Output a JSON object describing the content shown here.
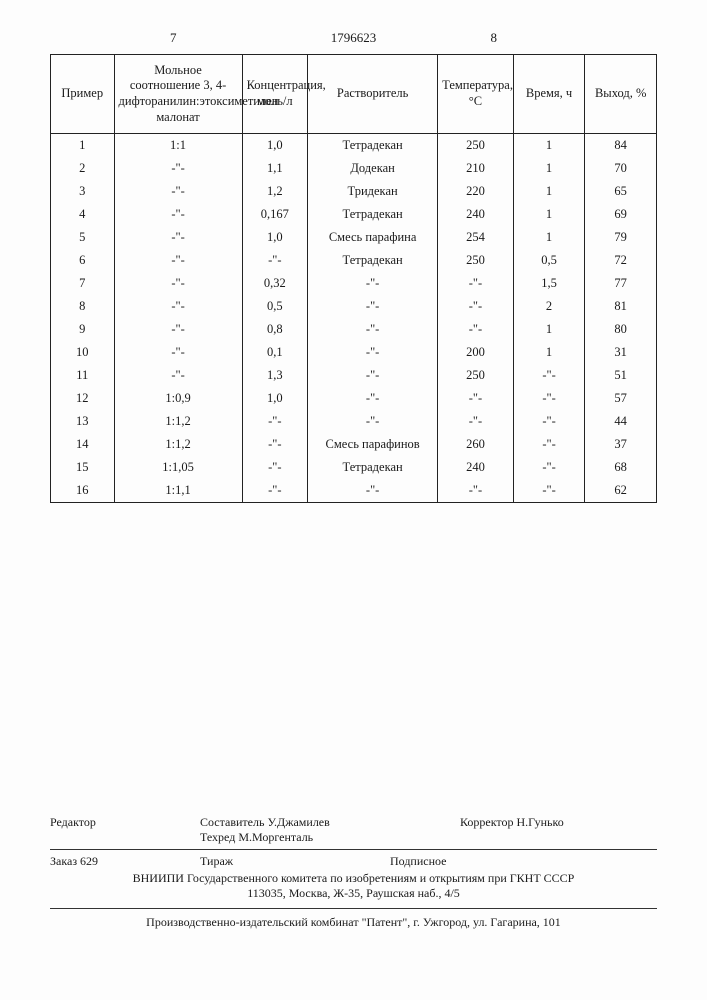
{
  "header": {
    "page_left": "7",
    "doc_number": "1796623",
    "page_right": "8"
  },
  "table": {
    "columns": [
      "Пример",
      "Мольное соотношение 3, 4-дифторанилин:этоксиметилен малонат",
      "Концентрация, моль/л",
      "Растворитель",
      "Температура, °С",
      "Время, ч",
      "Выход, %"
    ],
    "rows": [
      [
        "1",
        "1:1",
        "1,0",
        "Тетрадекан",
        "250",
        "1",
        "84"
      ],
      [
        "2",
        "-\"-",
        "1,1",
        "Додекан",
        "210",
        "1",
        "70"
      ],
      [
        "3",
        "-\"-",
        "1,2",
        "Тридекан",
        "220",
        "1",
        "65"
      ],
      [
        "4",
        "-\"-",
        "0,167",
        "Тетрадекан",
        "240",
        "1",
        "69"
      ],
      [
        "5",
        "-\"-",
        "1,0",
        "Смесь парафина",
        "254",
        "1",
        "79"
      ],
      [
        "6",
        "-\"-",
        "-\"-",
        "Тетрадекан",
        "250",
        "0,5",
        "72"
      ],
      [
        "7",
        "-\"-",
        "0,32",
        "-\"-",
        "-\"-",
        "1,5",
        "77"
      ],
      [
        "8",
        "-\"-",
        "0,5",
        "-\"-",
        "-\"-",
        "2",
        "81"
      ],
      [
        "9",
        "-\"-",
        "0,8",
        "-\"-",
        "-\"-",
        "1",
        "80"
      ],
      [
        "10",
        "-\"-",
        "0,1",
        "-\"-",
        "200",
        "1",
        "31"
      ],
      [
        "11",
        "-\"-",
        "1,3",
        "-\"-",
        "250",
        "-\"-",
        "51"
      ],
      [
        "12",
        "1:0,9",
        "1,0",
        "-\"-",
        "-\"-",
        "-\"-",
        "57"
      ],
      [
        "13",
        "1:1,2",
        "-\"-",
        "-\"-",
        "-\"-",
        "-\"-",
        "44"
      ],
      [
        "14",
        "1:1,2",
        "-\"-",
        "Смесь парафинов",
        "260",
        "-\"-",
        "37"
      ],
      [
        "15",
        "1:1,05",
        "-\"-",
        "Тетрадекан",
        "240",
        "-\"-",
        "68"
      ],
      [
        "16",
        "1:1,1",
        "-\"-",
        "-\"-",
        "-\"-",
        "-\"-",
        "62"
      ]
    ]
  },
  "footer": {
    "editor_label": "Редактор",
    "compiler": "Составитель У.Джамилев",
    "techred": "Техред М.Моргенталь",
    "corrector": "Корректор Н.Гунько",
    "order": "Заказ 629",
    "tirazh": "Тираж",
    "podpisnoe": "Подписное",
    "org_line1": "ВНИИПИ Государственного комитета по изобретениям и открытиям при ГКНТ СССР",
    "org_line2": "113035, Москва, Ж-35, Раушская наб., 4/5",
    "bottom": "Производственно-издательский комбинат \"Патент\", г. Ужгород, ул. Гагарина, 101"
  }
}
